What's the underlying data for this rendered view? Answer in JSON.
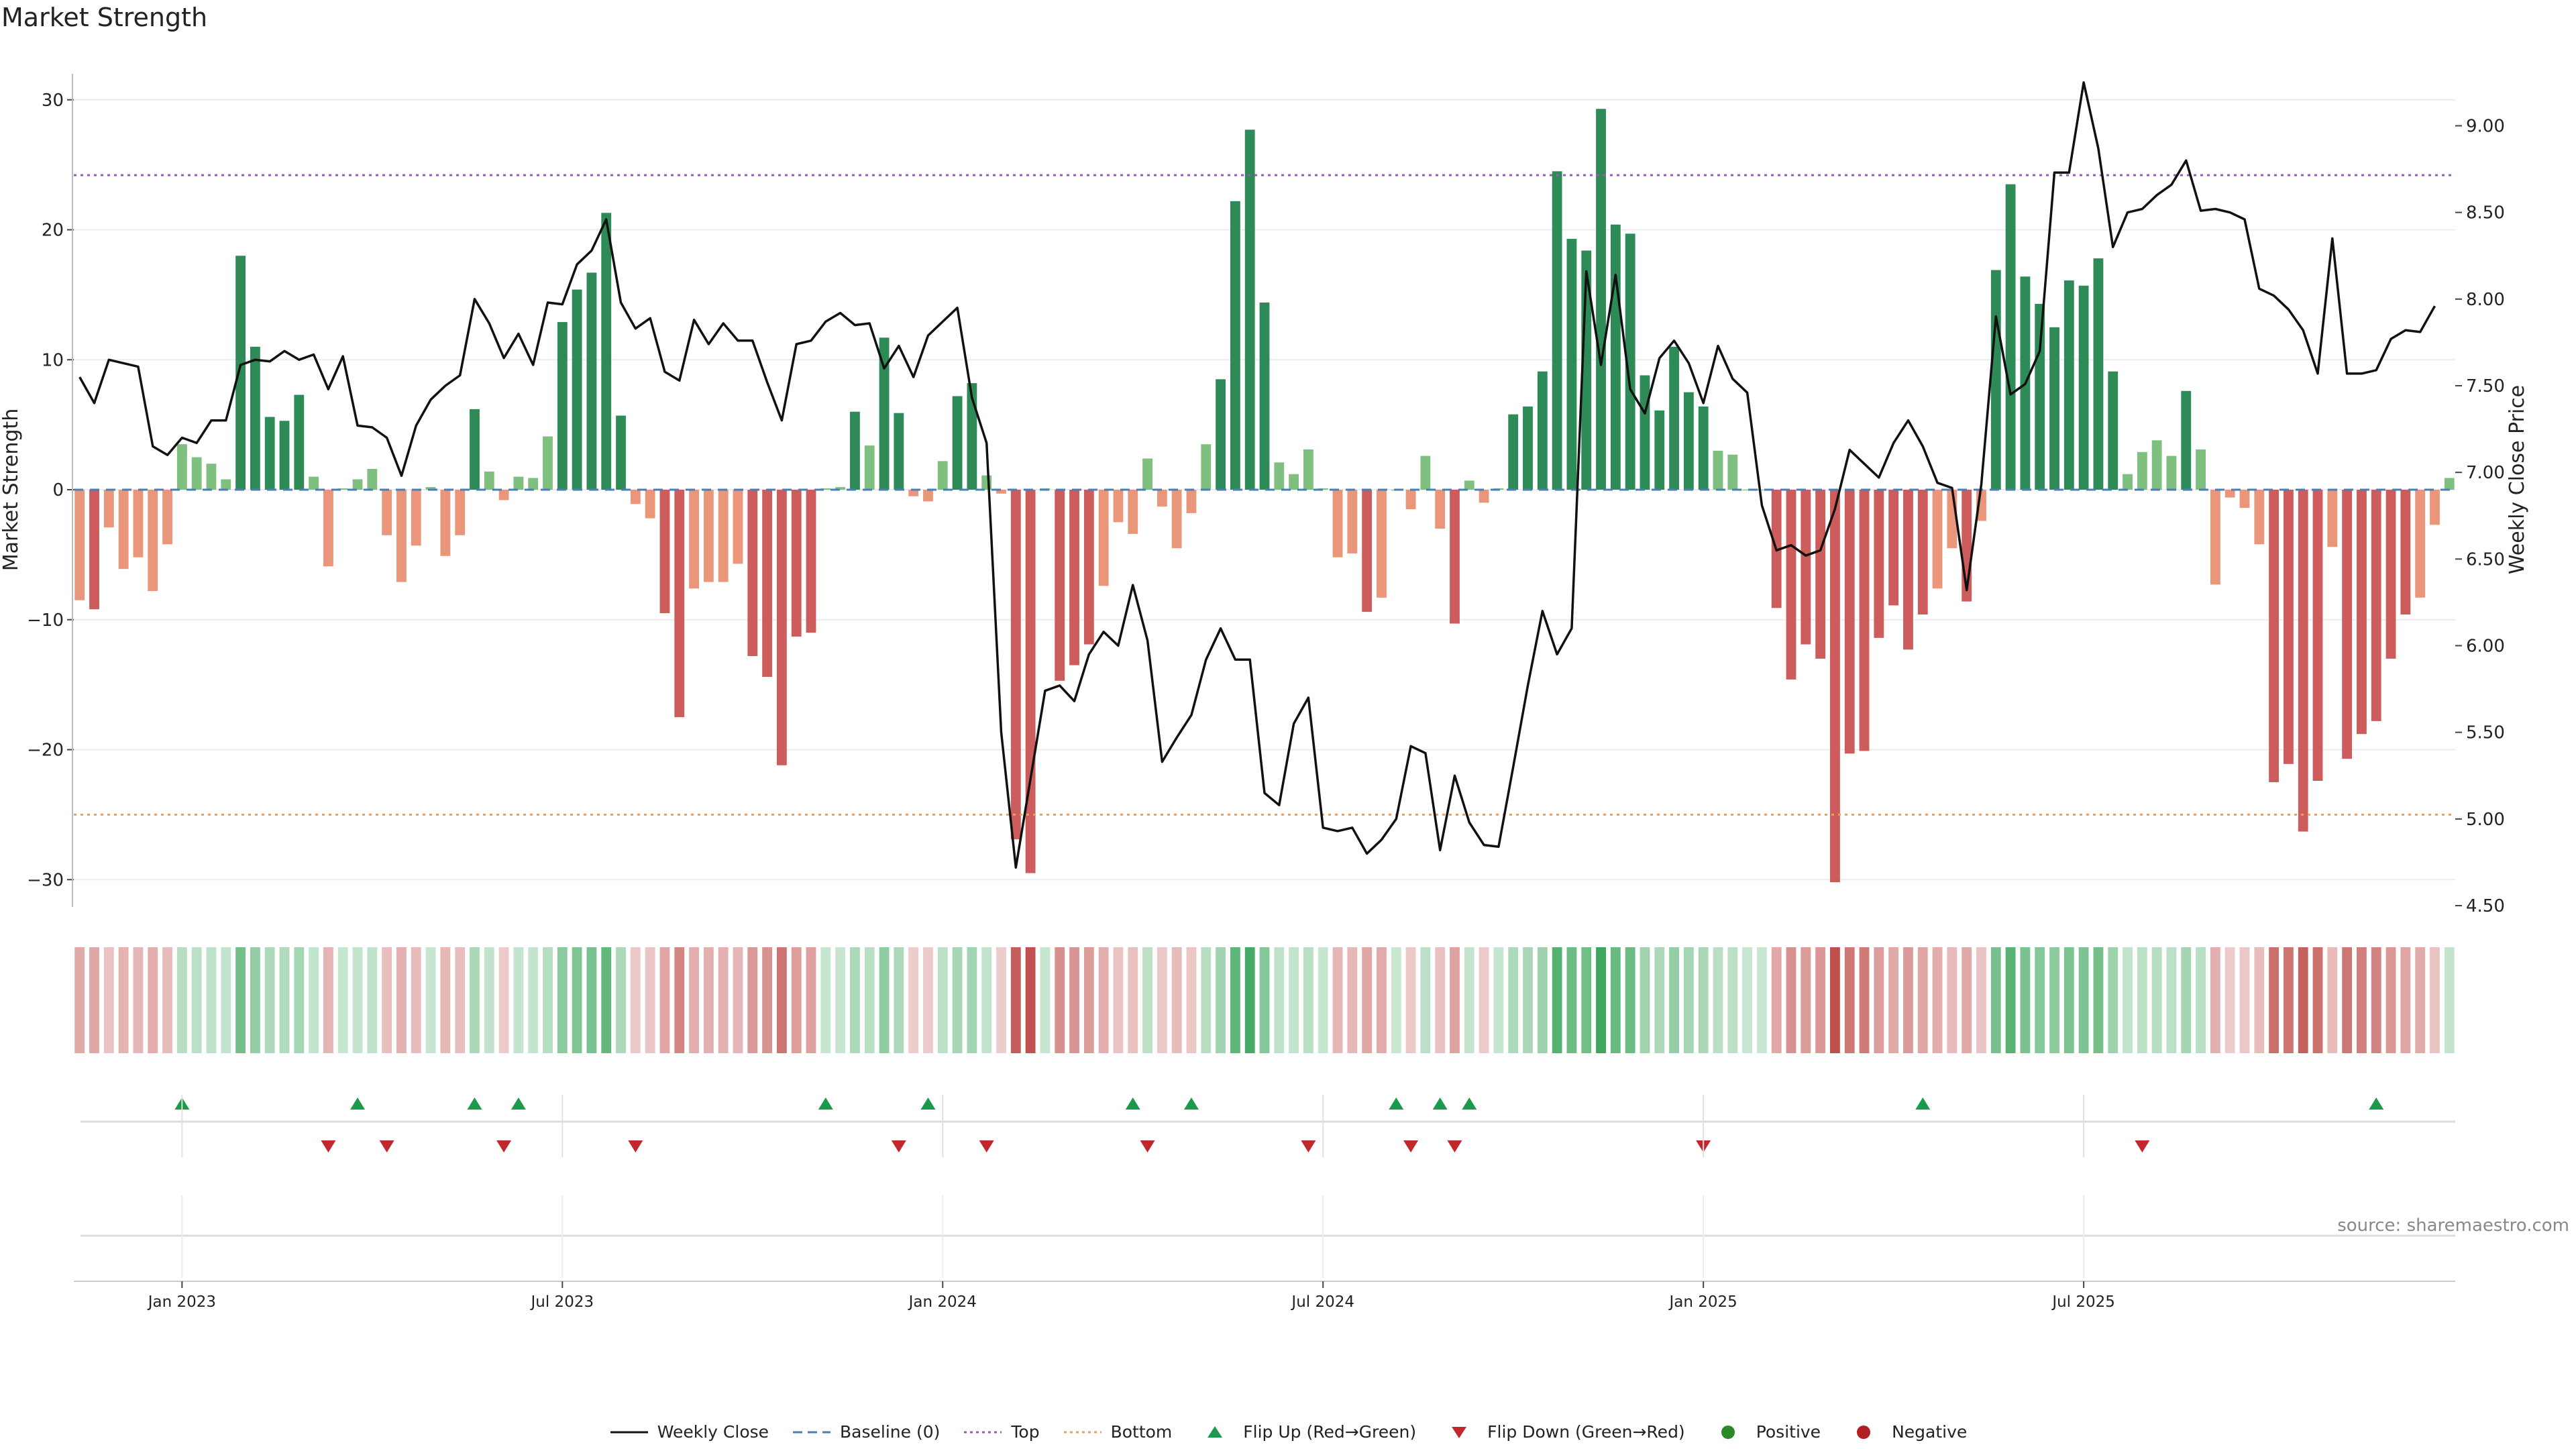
{
  "title": "Market Strength",
  "source": "source: sharemaestro.com",
  "colors": {
    "strong_pos": "#2e8b57",
    "weak_pos": "#7fbf7f",
    "strong_neg": "#cd5c5c",
    "weak_neg": "#e9967a",
    "price_line": "#111111",
    "baseline": "#4a7fb5",
    "top_line": "#9b59b6",
    "bottom_line": "#e8a060",
    "flip_up": "#1a9a4a",
    "flip_down": "#c0282d",
    "positive": "#2a8a2a",
    "negative": "#b02020"
  },
  "legend": [
    {
      "label": "Weekly Close",
      "icon": "solid-line",
      "color": "#111111"
    },
    {
      "label": "Baseline (0)",
      "icon": "dashed-line",
      "color": "#4a7fb5"
    },
    {
      "label": "Top",
      "icon": "dotted-line",
      "color": "#9b59b6"
    },
    {
      "label": "Bottom",
      "icon": "dotted-line",
      "color": "#e8a060"
    },
    {
      "label": "Flip Up (Red→Green)",
      "icon": "triangle-up",
      "color": "#1a9a4a"
    },
    {
      "label": "Flip Down (Green→Red)",
      "icon": "triangle-down",
      "color": "#c0282d"
    },
    {
      "label": "Positive",
      "icon": "circle",
      "color": "#2a8a2a"
    },
    {
      "label": "Negative",
      "icon": "circle",
      "color": "#b02020"
    }
  ],
  "chart_data": {
    "type": "bar",
    "title": "Market Strength",
    "ylabel": "Market Strength",
    "ylabel_right": "Weekly Close Price",
    "ylim": [
      -32,
      32
    ],
    "ylim_right": [
      4.5,
      9.3
    ],
    "y_ticks": [
      30,
      20,
      10,
      0,
      -10,
      -20,
      -30
    ],
    "y_tick_labels": [
      "30",
      "20",
      "10",
      "0",
      "−10",
      "−20",
      "−30"
    ],
    "y_right_ticks": [
      9.0,
      8.5,
      8.0,
      7.5,
      7.0,
      6.5,
      6.0,
      5.5,
      5.0,
      4.5
    ],
    "y_right_tick_labels": [
      "9.00",
      "8.50",
      "8.00",
      "7.50",
      "7.00",
      "6.50",
      "6.00",
      "5.50",
      "5.00",
      "4.50"
    ],
    "x_ticks": [
      7,
      33,
      59,
      85,
      111,
      137
    ],
    "x_tick_labels": [
      "Jan 2023",
      "Jul 2023",
      "Jan 2024",
      "Jul 2024",
      "Jan 2025",
      "Jul 2025"
    ],
    "grid": true,
    "legend_position": "bottom",
    "top_line": 24.2,
    "bottom_line": -25,
    "baseline": 0,
    "strength": [
      -8.5,
      -9.2,
      -2.9,
      -6.1,
      -5.2,
      -7.8,
      -4.2,
      3.5,
      2.5,
      2,
      0.8,
      18,
      11,
      5.6,
      5.3,
      7.3,
      1,
      -5.9,
      0.1,
      0.8,
      1.6,
      -3.5,
      -7.1,
      -4.3,
      0.2,
      -5.1,
      -3.5,
      6.2,
      1.4,
      -0.8,
      1,
      0.9,
      4.1,
      12.9,
      15.4,
      16.7,
      21.3,
      5.7,
      -1.1,
      -2.2,
      -9.5,
      -17.5,
      -7.6,
      -7.1,
      -7.1,
      -5.7,
      -12.8,
      -14.4,
      -21.2,
      -11.3,
      -11,
      0.1,
      0.2,
      6,
      3.4,
      11.7,
      5.9,
      -0.5,
      -0.9,
      2.2,
      7.2,
      8.2,
      1.1,
      -0.3,
      -26.9,
      -29.5,
      0.1,
      -14.7,
      -13.5,
      -11.9,
      -7.4,
      -2.5,
      -3.4,
      2.4,
      -1.3,
      -4.5,
      -1.8,
      3.5,
      8.5,
      22.2,
      27.7,
      14.4,
      2.1,
      1.2,
      3.1,
      0.1,
      -5.2,
      -4.9,
      -9.4,
      -8.3,
      0,
      -1.5,
      2.6,
      -3,
      -10.3,
      0.7,
      -1,
      0.1,
      5.8,
      6.4,
      9.1,
      24.5,
      19.3,
      18.4,
      29.3,
      20.4,
      19.7,
      8.8,
      6.1,
      11,
      7.5,
      6.4,
      3,
      2.7,
      0,
      0,
      -9.1,
      -14.6,
      -11.9,
      -13,
      -30.2,
      -20.3,
      -20.1,
      -11.4,
      -8.9,
      -12.3,
      -9.6,
      -7.6,
      -4.5,
      -8.6,
      -2.4,
      16.9,
      23.5,
      16.4,
      14.3,
      12.5,
      16.1,
      15.7,
      17.8,
      9.1,
      1.2,
      2.9,
      3.8,
      2.6,
      7.6,
      3.1,
      -7.3,
      -0.6,
      -1.4,
      -4.2,
      -22.5,
      -21.1,
      -26.3,
      -22.4,
      -4.4,
      -20.7,
      -18.8,
      -17.8,
      -13,
      -9.6,
      -8.3,
      -2.7,
      0.9
    ],
    "weekly_close": [
      7.55,
      7.4,
      7.65,
      7.63,
      7.61,
      7.15,
      7.1,
      7.2,
      7.17,
      7.3,
      7.3,
      7.62,
      7.65,
      7.64,
      7.7,
      7.65,
      7.68,
      7.48,
      7.67,
      7.27,
      7.26,
      7.2,
      6.98,
      7.27,
      7.42,
      7.5,
      7.56,
      8.0,
      7.86,
      7.66,
      7.8,
      7.62,
      7.98,
      7.97,
      8.2,
      8.28,
      8.46,
      7.98,
      7.83,
      7.89,
      7.58,
      7.53,
      7.88,
      7.74,
      7.86,
      7.76,
      7.76,
      7.52,
      7.3,
      7.74,
      7.76,
      7.87,
      7.92,
      7.85,
      7.86,
      7.6,
      7.73,
      7.55,
      7.79,
      7.87,
      7.95,
      7.43,
      7.17,
      5.5,
      4.72,
      5.23,
      5.74,
      5.77,
      5.68,
      5.95,
      6.08,
      6.0,
      6.35,
      6.03,
      5.33,
      5.47,
      5.6,
      5.92,
      6.1,
      5.92,
      5.92,
      5.15,
      5.08,
      5.55,
      5.7,
      4.95,
      4.93,
      4.95,
      4.8,
      4.88,
      5.0,
      5.42,
      5.38,
      4.82,
      5.25,
      4.98,
      4.85,
      4.84,
      5.3,
      5.77,
      6.2,
      5.95,
      6.1,
      8.16,
      7.62,
      8.14,
      7.48,
      7.34,
      7.66,
      7.76,
      7.63,
      7.4,
      7.73,
      7.54,
      7.46,
      6.81,
      6.55,
      6.58,
      6.52,
      6.55,
      6.79,
      7.13,
      7.05,
      6.97,
      7.17,
      7.3,
      7.15,
      6.94,
      6.91,
      6.32,
      6.93,
      7.9,
      7.45,
      7.51,
      7.7,
      8.73,
      8.73,
      9.25,
      8.87,
      8.3,
      8.5,
      8.52,
      8.6,
      8.66,
      8.8,
      8.51,
      8.52,
      8.5,
      8.46,
      8.06,
      8.02,
      7.94,
      7.82,
      7.57,
      8.35,
      7.57,
      7.57,
      7.59,
      7.77,
      7.82,
      7.81,
      7.96
    ],
    "flip_up": [
      7,
      19,
      27,
      30,
      51,
      58,
      72,
      76,
      90,
      93,
      95,
      126,
      157
    ],
    "flip_down": [
      17,
      21,
      29,
      38,
      56,
      62,
      73,
      84,
      91,
      94,
      111,
      141
    ]
  }
}
